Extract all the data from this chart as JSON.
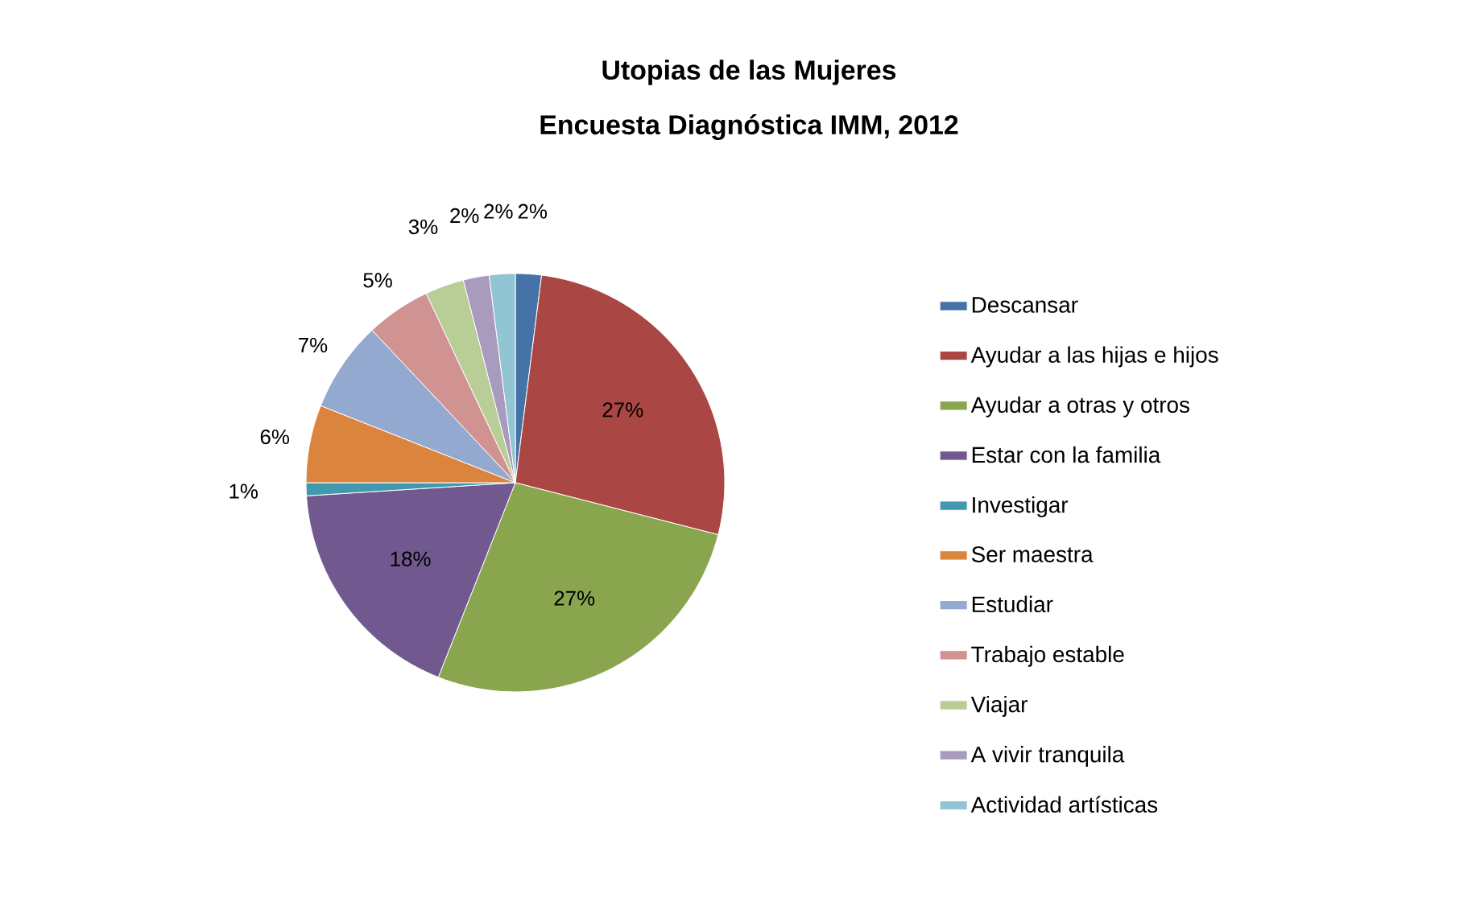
{
  "chart_data": {
    "type": "pie",
    "title": "Utopias de las Mujeres",
    "subtitle": "Encuesta Diagnóstica IMM, 2012",
    "categories": [
      "Descansar",
      "Ayudar a las hijas e hijos",
      "Ayudar a otras y otros",
      "Estar con la familia",
      "Investigar",
      "Ser maestra",
      "Estudiar",
      "Trabajo estable",
      "Viajar",
      "A vivir tranquila",
      "Actividad artísticas"
    ],
    "values": [
      2,
      27,
      27,
      18,
      1,
      6,
      7,
      5,
      3,
      2,
      2
    ],
    "value_labels": [
      "2%",
      "27%",
      "27%",
      "18%",
      "1%",
      "6%",
      "7%",
      "5%",
      "3%",
      "2%",
      "2%"
    ],
    "colors": [
      "#4572a7",
      "#aa4643",
      "#89a54e",
      "#71588f",
      "#4198af",
      "#db843d",
      "#93a9cf",
      "#d19392",
      "#b9cd96",
      "#a99bbd",
      "#92c5d3"
    ],
    "legend": "right"
  }
}
